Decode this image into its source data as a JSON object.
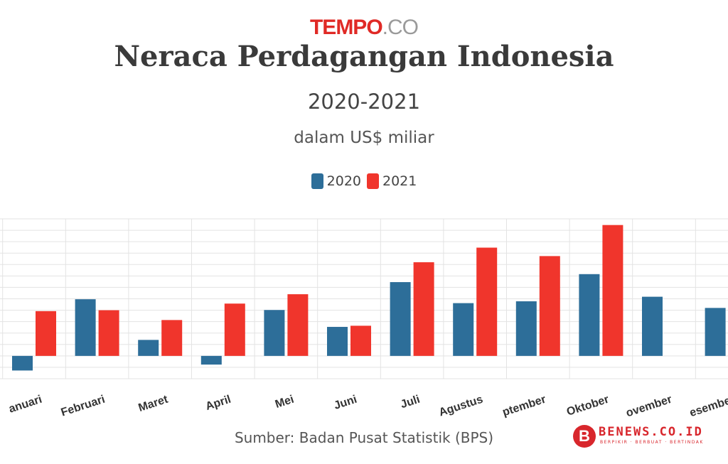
{
  "brand": {
    "name_main": "TEMPO",
    "name_suffix": ".CO"
  },
  "colors": {
    "series_2020": "#2d6e99",
    "series_2021": "#f0352c",
    "grid": "#e3e3e3"
  },
  "chart_data": {
    "type": "bar",
    "title": "Neraca Perdagangan Indonesia",
    "subtitle": "2020-2021",
    "unit_label": "dalam US$ miliar",
    "categories": [
      "Januari",
      "Februari",
      "Maret",
      "April",
      "Mei",
      "Juni",
      "Juli",
      "Agustus",
      "September",
      "Oktober",
      "November",
      "Desember"
    ],
    "category_labels_visible": [
      "anuari",
      "Februari",
      "Maret",
      "April",
      "Mei",
      "Juni",
      "Juli",
      "Agustus",
      "ptember",
      "Oktober",
      "ovember",
      "esember"
    ],
    "series": [
      {
        "name": "2020",
        "values": [
          -0.64,
          2.48,
          0.7,
          -0.38,
          2.01,
          1.27,
          3.23,
          2.31,
          2.39,
          3.58,
          2.59,
          2.1
        ]
      },
      {
        "name": "2021",
        "values": [
          1.96,
          2.0,
          1.57,
          2.29,
          2.7,
          1.32,
          4.1,
          4.74,
          4.37,
          5.73,
          null,
          null
        ]
      }
    ],
    "ylim": [
      -1.0,
      6.0
    ],
    "grid": true,
    "legend_position": "top-center",
    "source": "Sumber: Badan Pusat Statistik (BPS)"
  },
  "watermark": {
    "name": "BENEWS.CO.ID",
    "icon_letter": "B",
    "tagline": "BERPIKIR · BERBUAT · BERTINDAK"
  }
}
